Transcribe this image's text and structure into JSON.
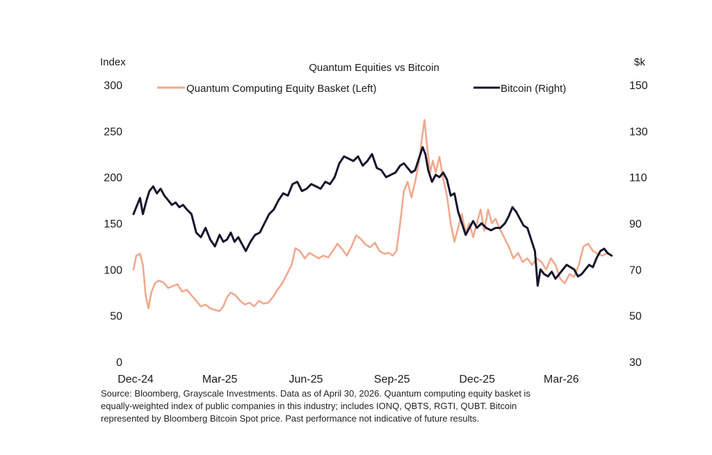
{
  "chart_data": {
    "type": "line",
    "title": "Quantum Equities vs Bitcoin",
    "y_left_label": "Index",
    "y_right_label": "$k",
    "y_left_lim": [
      0,
      300
    ],
    "y_right_lim": [
      30,
      150
    ],
    "y_left_ticks": [
      "0",
      "50",
      "100",
      "150",
      "200",
      "250",
      "300"
    ],
    "y_right_ticks": [
      "30",
      "50",
      "70",
      "90",
      "110",
      "130",
      "150"
    ],
    "x_lim": [
      "2024-12-01",
      "2026-04-30"
    ],
    "x_ticks": [
      {
        "date": "2024-12-01",
        "label": "Dec-24"
      },
      {
        "date": "2025-03-01",
        "label": "Mar-25"
      },
      {
        "date": "2025-06-01",
        "label": "Jun-25"
      },
      {
        "date": "2025-09-01",
        "label": "Sep-25"
      },
      {
        "date": "2025-12-01",
        "label": "Dec-25"
      },
      {
        "date": "2026-03-01",
        "label": "Mar-26"
      }
    ],
    "grid": false,
    "legend_position": "top",
    "series": [
      {
        "name": "Quantum Computing Equity Basket (Left)",
        "axis": "left",
        "color": "#f0a98d",
        "points": [
          [
            "2024-12-01",
            100
          ],
          [
            "2024-12-04",
            115
          ],
          [
            "2024-12-08",
            117
          ],
          [
            "2024-12-11",
            105
          ],
          [
            "2024-12-14",
            72
          ],
          [
            "2024-12-17",
            58
          ],
          [
            "2024-12-20",
            75
          ],
          [
            "2024-12-24",
            85
          ],
          [
            "2024-12-28",
            88
          ],
          [
            "2025-01-02",
            86
          ],
          [
            "2025-01-07",
            80
          ],
          [
            "2025-01-12",
            82
          ],
          [
            "2025-01-17",
            84
          ],
          [
            "2025-01-22",
            76
          ],
          [
            "2025-01-27",
            78
          ],
          [
            "2025-02-01",
            72
          ],
          [
            "2025-02-06",
            66
          ],
          [
            "2025-02-11",
            60
          ],
          [
            "2025-02-16",
            62
          ],
          [
            "2025-02-21",
            58
          ],
          [
            "2025-02-26",
            56
          ],
          [
            "2025-03-03",
            55
          ],
          [
            "2025-03-07",
            60
          ],
          [
            "2025-03-11",
            70
          ],
          [
            "2025-03-15",
            75
          ],
          [
            "2025-03-20",
            72
          ],
          [
            "2025-03-25",
            66
          ],
          [
            "2025-03-30",
            62
          ],
          [
            "2025-04-04",
            64
          ],
          [
            "2025-04-09",
            60
          ],
          [
            "2025-04-14",
            66
          ],
          [
            "2025-04-19",
            63
          ],
          [
            "2025-04-24",
            64
          ],
          [
            "2025-04-29",
            70
          ],
          [
            "2025-05-04",
            78
          ],
          [
            "2025-05-09",
            85
          ],
          [
            "2025-05-14",
            95
          ],
          [
            "2025-05-19",
            105
          ],
          [
            "2025-05-23",
            123
          ],
          [
            "2025-05-28",
            120
          ],
          [
            "2025-06-02",
            112
          ],
          [
            "2025-06-07",
            118
          ],
          [
            "2025-06-12",
            115
          ],
          [
            "2025-06-17",
            112
          ],
          [
            "2025-06-22",
            115
          ],
          [
            "2025-06-27",
            113
          ],
          [
            "2025-07-02",
            120
          ],
          [
            "2025-07-07",
            128
          ],
          [
            "2025-07-12",
            122
          ],
          [
            "2025-07-17",
            115
          ],
          [
            "2025-07-22",
            125
          ],
          [
            "2025-07-27",
            137
          ],
          [
            "2025-08-01",
            133
          ],
          [
            "2025-08-06",
            127
          ],
          [
            "2025-08-11",
            124
          ],
          [
            "2025-08-16",
            129
          ],
          [
            "2025-08-21",
            120
          ],
          [
            "2025-08-26",
            117
          ],
          [
            "2025-08-31",
            118
          ],
          [
            "2025-09-04",
            115
          ],
          [
            "2025-09-08",
            120
          ],
          [
            "2025-09-12",
            150
          ],
          [
            "2025-09-16",
            185
          ],
          [
            "2025-09-20",
            195
          ],
          [
            "2025-09-24",
            178
          ],
          [
            "2025-09-28",
            195
          ],
          [
            "2025-10-02",
            215
          ],
          [
            "2025-10-05",
            240
          ],
          [
            "2025-10-08",
            262
          ],
          [
            "2025-10-11",
            232
          ],
          [
            "2025-10-14",
            205
          ],
          [
            "2025-10-17",
            218
          ],
          [
            "2025-10-20",
            205
          ],
          [
            "2025-10-24",
            222
          ],
          [
            "2025-10-28",
            198
          ],
          [
            "2025-11-01",
            180
          ],
          [
            "2025-11-05",
            150
          ],
          [
            "2025-11-09",
            130
          ],
          [
            "2025-11-13",
            145
          ],
          [
            "2025-11-17",
            160
          ],
          [
            "2025-11-21",
            140
          ],
          [
            "2025-11-25",
            150
          ],
          [
            "2025-11-29",
            135
          ],
          [
            "2025-12-03",
            150
          ],
          [
            "2025-12-07",
            165
          ],
          [
            "2025-12-11",
            142
          ],
          [
            "2025-12-15",
            165
          ],
          [
            "2025-12-19",
            150
          ],
          [
            "2025-12-23",
            155
          ],
          [
            "2025-12-27",
            145
          ],
          [
            "2026-01-01",
            135
          ],
          [
            "2026-01-06",
            125
          ],
          [
            "2026-01-11",
            112
          ],
          [
            "2026-01-16",
            118
          ],
          [
            "2026-01-21",
            108
          ],
          [
            "2026-01-26",
            112
          ],
          [
            "2026-01-31",
            105
          ],
          [
            "2026-02-05",
            112
          ],
          [
            "2026-02-10",
            108
          ],
          [
            "2026-02-15",
            100
          ],
          [
            "2026-02-20",
            112
          ],
          [
            "2026-02-25",
            105
          ],
          [
            "2026-03-02",
            90
          ],
          [
            "2026-03-07",
            85
          ],
          [
            "2026-03-12",
            95
          ],
          [
            "2026-03-17",
            92
          ],
          [
            "2026-03-22",
            105
          ],
          [
            "2026-03-27",
            125
          ],
          [
            "2026-04-01",
            128
          ],
          [
            "2026-04-06",
            120
          ],
          [
            "2026-04-11",
            117
          ],
          [
            "2026-04-16",
            115
          ],
          [
            "2026-04-22",
            118
          ]
        ]
      },
      {
        "name": "Bitcoin (Right)",
        "axis": "right",
        "color": "#16142c",
        "points": [
          [
            "2024-12-01",
            94
          ],
          [
            "2024-12-04",
            97
          ],
          [
            "2024-12-08",
            101
          ],
          [
            "2024-12-11",
            94
          ],
          [
            "2024-12-15",
            100
          ],
          [
            "2024-12-18",
            104
          ],
          [
            "2024-12-22",
            106
          ],
          [
            "2024-12-26",
            103
          ],
          [
            "2024-12-30",
            105
          ],
          [
            "2025-01-03",
            102
          ],
          [
            "2025-01-07",
            100
          ],
          [
            "2025-01-11",
            98
          ],
          [
            "2025-01-15",
            99
          ],
          [
            "2025-01-19",
            97
          ],
          [
            "2025-01-23",
            98
          ],
          [
            "2025-01-27",
            96
          ],
          [
            "2025-02-01",
            94
          ],
          [
            "2025-02-06",
            86
          ],
          [
            "2025-02-11",
            84
          ],
          [
            "2025-02-16",
            88
          ],
          [
            "2025-02-21",
            83
          ],
          [
            "2025-02-26",
            80
          ],
          [
            "2025-03-03",
            85
          ],
          [
            "2025-03-07",
            82
          ],
          [
            "2025-03-11",
            83
          ],
          [
            "2025-03-15",
            86
          ],
          [
            "2025-03-19",
            82
          ],
          [
            "2025-03-23",
            84
          ],
          [
            "2025-03-27",
            81
          ],
          [
            "2025-03-31",
            78
          ],
          [
            "2025-04-05",
            82
          ],
          [
            "2025-04-10",
            85
          ],
          [
            "2025-04-15",
            86
          ],
          [
            "2025-04-20",
            90
          ],
          [
            "2025-04-25",
            94
          ],
          [
            "2025-04-30",
            96
          ],
          [
            "2025-05-05",
            100
          ],
          [
            "2025-05-10",
            103
          ],
          [
            "2025-05-15",
            102
          ],
          [
            "2025-05-20",
            107
          ],
          [
            "2025-05-25",
            108
          ],
          [
            "2025-05-30",
            104
          ],
          [
            "2025-06-04",
            105
          ],
          [
            "2025-06-09",
            107
          ],
          [
            "2025-06-14",
            106
          ],
          [
            "2025-06-19",
            105
          ],
          [
            "2025-06-24",
            108
          ],
          [
            "2025-06-29",
            107
          ],
          [
            "2025-07-04",
            110
          ],
          [
            "2025-07-09",
            116
          ],
          [
            "2025-07-14",
            119
          ],
          [
            "2025-07-19",
            118
          ],
          [
            "2025-07-24",
            117
          ],
          [
            "2025-07-29",
            119
          ],
          [
            "2025-08-03",
            115
          ],
          [
            "2025-08-08",
            117
          ],
          [
            "2025-08-13",
            120
          ],
          [
            "2025-08-18",
            114
          ],
          [
            "2025-08-23",
            113
          ],
          [
            "2025-08-28",
            110
          ],
          [
            "2025-09-02",
            111
          ],
          [
            "2025-09-07",
            112
          ],
          [
            "2025-09-12",
            115
          ],
          [
            "2025-09-16",
            116
          ],
          [
            "2025-09-20",
            114
          ],
          [
            "2025-09-24",
            112
          ],
          [
            "2025-09-28",
            113
          ],
          [
            "2025-10-02",
            118
          ],
          [
            "2025-10-06",
            123
          ],
          [
            "2025-10-09",
            120
          ],
          [
            "2025-10-12",
            113
          ],
          [
            "2025-10-16",
            108
          ],
          [
            "2025-10-20",
            111
          ],
          [
            "2025-10-24",
            110
          ],
          [
            "2025-10-28",
            112
          ],
          [
            "2025-11-01",
            109
          ],
          [
            "2025-11-05",
            102
          ],
          [
            "2025-11-09",
            103
          ],
          [
            "2025-11-13",
            95
          ],
          [
            "2025-11-17",
            90
          ],
          [
            "2025-11-21",
            85
          ],
          [
            "2025-11-25",
            88
          ],
          [
            "2025-11-29",
            91
          ],
          [
            "2025-12-03",
            88
          ],
          [
            "2025-12-08",
            90
          ],
          [
            "2025-12-13",
            88
          ],
          [
            "2025-12-18",
            87
          ],
          [
            "2025-12-23",
            88
          ],
          [
            "2025-12-28",
            88
          ],
          [
            "2026-01-02",
            90
          ],
          [
            "2026-01-06",
            93
          ],
          [
            "2026-01-10",
            97
          ],
          [
            "2026-01-14",
            95
          ],
          [
            "2026-01-18",
            92
          ],
          [
            "2026-01-22",
            89
          ],
          [
            "2026-01-26",
            88
          ],
          [
            "2026-01-30",
            83
          ],
          [
            "2026-02-03",
            78
          ],
          [
            "2026-02-06",
            63
          ],
          [
            "2026-02-09",
            70
          ],
          [
            "2026-02-13",
            68
          ],
          [
            "2026-02-17",
            67
          ],
          [
            "2026-02-21",
            69
          ],
          [
            "2026-02-25",
            66
          ],
          [
            "2026-03-01",
            68
          ],
          [
            "2026-03-05",
            70
          ],
          [
            "2026-03-09",
            72
          ],
          [
            "2026-03-13",
            71
          ],
          [
            "2026-03-17",
            70
          ],
          [
            "2026-03-21",
            67
          ],
          [
            "2026-03-25",
            68
          ],
          [
            "2026-03-29",
            70
          ],
          [
            "2026-04-02",
            72
          ],
          [
            "2026-04-06",
            71
          ],
          [
            "2026-04-10",
            75
          ],
          [
            "2026-04-14",
            78
          ],
          [
            "2026-04-18",
            79
          ],
          [
            "2026-04-22",
            77
          ],
          [
            "2026-04-26",
            76
          ]
        ]
      }
    ],
    "source_lines": [
      "Source: Bloomberg, Grayscale Investments. Data as of April 30, 2026. Quantum computing equity basket is",
      "equally-weighted index of public companies in this industry; includes IONQ, QBTS, RGTI, QUBT. Bitcoin",
      "represented  by Bloomberg Bitcoin Spot price.  Past performance not indicative of future results."
    ]
  }
}
